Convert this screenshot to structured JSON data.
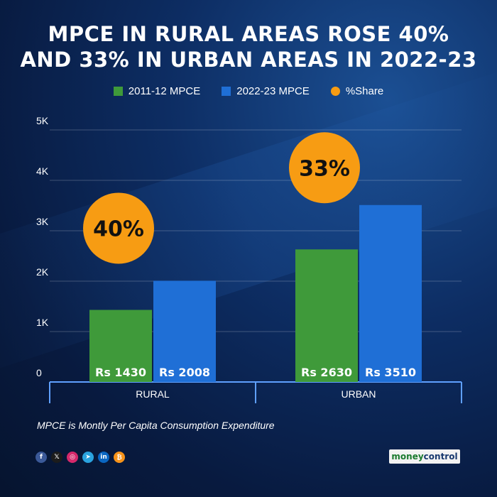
{
  "title_line1": "MPCE IN RURAL AREAS ROSE 40%",
  "title_line2": "AND 33% IN URBAN AREAS IN 2022-23",
  "legend": [
    {
      "label": "2011-12 MPCE",
      "color": "#3f9a3a"
    },
    {
      "label": "2022-23 MPCE",
      "color": "#1f6fd6"
    },
    {
      "label": "%Share",
      "color": "#f79c13"
    }
  ],
  "chart_data": {
    "type": "bar",
    "categories": [
      "RURAL",
      "URBAN"
    ],
    "series": [
      {
        "name": "2011-12 MPCE",
        "values": [
          1430,
          2630
        ],
        "labels": [
          "Rs 1430",
          "Rs 2630"
        ],
        "color": "#3f9a3a"
      },
      {
        "name": "2022-23 MPCE",
        "values": [
          2008,
          3510
        ],
        "labels": [
          "Rs 2008",
          "Rs 3510"
        ],
        "color": "#1f6fd6"
      }
    ],
    "share": {
      "name": "%Share",
      "labels": [
        "40%",
        "33%"
      ],
      "color": "#f79c13"
    },
    "yticks": [
      {
        "value": 0,
        "label": "0"
      },
      {
        "value": 1000,
        "label": "1K"
      },
      {
        "value": 2000,
        "label": "2K"
      },
      {
        "value": 3000,
        "label": "3K"
      },
      {
        "value": 4000,
        "label": "4K"
      },
      {
        "value": 5000,
        "label": "5K"
      }
    ],
    "ylim": [
      0,
      5000
    ],
    "grid": true
  },
  "footnote": "MPCE is Montly Per Capita Consumption Expenditure",
  "social_icons": [
    {
      "name": "facebook-icon",
      "glyph": "f",
      "color": "#3b5998"
    },
    {
      "name": "x-icon",
      "glyph": "𝕏",
      "color": "#1c1c1c"
    },
    {
      "name": "instagram-icon",
      "glyph": "◎",
      "color": "#d6296b"
    },
    {
      "name": "telegram-icon",
      "glyph": "➤",
      "color": "#2aa3df"
    },
    {
      "name": "linkedin-icon",
      "glyph": "in",
      "color": "#0a66c2"
    },
    {
      "name": "bitcoin-icon",
      "glyph": "₿",
      "color": "#f7931a"
    }
  ],
  "brand": {
    "part1": "money",
    "part2": "control"
  }
}
